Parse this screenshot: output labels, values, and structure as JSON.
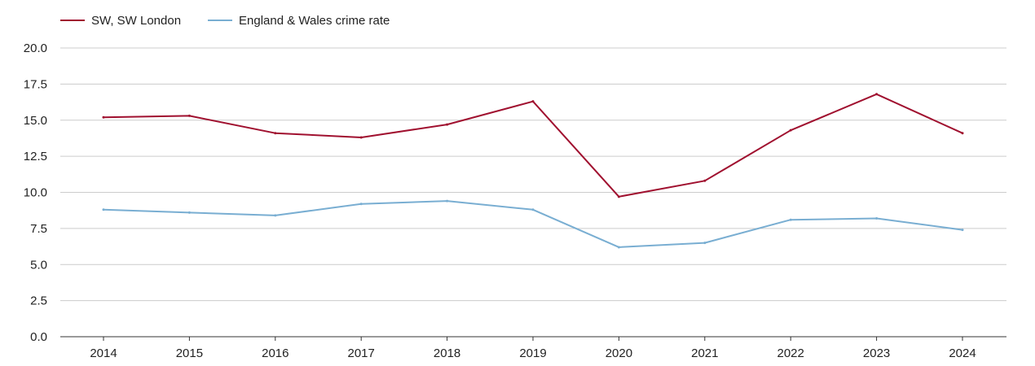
{
  "chart_data": {
    "type": "line",
    "title": "",
    "xlabel": "",
    "ylabel": "",
    "categories": [
      "2014",
      "2015",
      "2016",
      "2017",
      "2018",
      "2019",
      "2020",
      "2021",
      "2022",
      "2023",
      "2024"
    ],
    "y_ticks": [
      "0.0",
      "2.5",
      "5.0",
      "7.5",
      "10.0",
      "12.5",
      "15.0",
      "17.5",
      "20.0"
    ],
    "ylim": [
      0,
      20
    ],
    "grid": true,
    "legend_position": "top-left",
    "series": [
      {
        "name": "SW, SW London",
        "color": "#a0102f",
        "values": [
          15.2,
          15.3,
          14.1,
          13.8,
          14.7,
          16.3,
          9.7,
          10.8,
          14.3,
          16.8,
          14.1
        ]
      },
      {
        "name": "England & Wales crime rate",
        "color": "#79aed2",
        "values": [
          8.8,
          8.6,
          8.4,
          9.2,
          9.4,
          8.8,
          6.2,
          6.5,
          8.1,
          8.2,
          7.4
        ]
      }
    ]
  }
}
